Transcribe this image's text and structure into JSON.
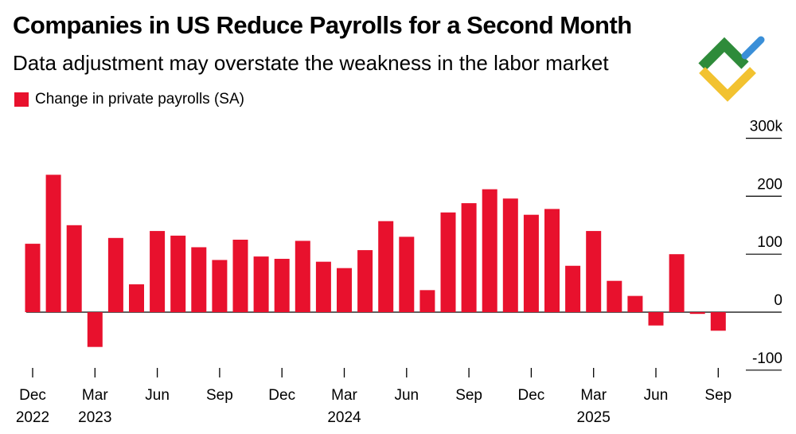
{
  "header": {
    "title": "Companies in US Reduce Payrolls for a Second Month",
    "subtitle": "Data adjustment may overstate the weakness in the labor market"
  },
  "logo": {
    "icon": "brand-logo-icon",
    "colors": [
      "#2e8b3a",
      "#3a8fd8",
      "#f2c230"
    ]
  },
  "chart_data": {
    "type": "bar",
    "legend": {
      "entries": [
        "Change in private payrolls (SA)"
      ],
      "placement": "top-left"
    },
    "series": [
      {
        "name": "Change in private payrolls (SA)",
        "color": "#e8112d",
        "values": [
          118,
          237,
          150,
          -60,
          128,
          48,
          140,
          132,
          112,
          90,
          125,
          96,
          92,
          123,
          87,
          76,
          107,
          157,
          130,
          38,
          172,
          188,
          212,
          196,
          168,
          178,
          80,
          140,
          54,
          28,
          -23,
          100,
          -3,
          -32
        ]
      }
    ],
    "x_ticks": [
      {
        "index": 0,
        "month": "Dec",
        "year": "2022"
      },
      {
        "index": 3,
        "month": "Mar",
        "year": "2023"
      },
      {
        "index": 6,
        "month": "Jun",
        "year": ""
      },
      {
        "index": 9,
        "month": "Sep",
        "year": ""
      },
      {
        "index": 12,
        "month": "Dec",
        "year": ""
      },
      {
        "index": 15,
        "month": "Mar",
        "year": "2024"
      },
      {
        "index": 18,
        "month": "Jun",
        "year": ""
      },
      {
        "index": 21,
        "month": "Sep",
        "year": ""
      },
      {
        "index": 24,
        "month": "Dec",
        "year": ""
      },
      {
        "index": 27,
        "month": "Mar",
        "year": "2025"
      },
      {
        "index": 30,
        "month": "Jun",
        "year": ""
      },
      {
        "index": 33,
        "month": "Sep",
        "year": ""
      }
    ],
    "y_ticks": [
      {
        "value": 300,
        "label": "300k"
      },
      {
        "value": 200,
        "label": "200"
      },
      {
        "value": 100,
        "label": "100"
      },
      {
        "value": 0,
        "label": "0"
      },
      {
        "value": -100,
        "label": "-100"
      }
    ],
    "ylim": [
      -100,
      300
    ],
    "grid": "right-side tick lines only"
  }
}
